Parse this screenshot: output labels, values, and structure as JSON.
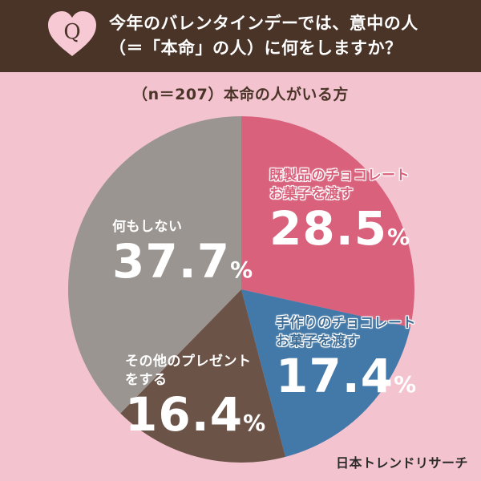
{
  "header": {
    "badge_letter": "Q",
    "question_line1": "今年のバレンタインデーでは、意中の人",
    "question_line2": "（＝「本命」の人）に何をしますか？"
  },
  "subtitle": "（n＝207）本命の人がいる方",
  "brand": "日本トレンドリサーチ",
  "colors": {
    "header_bg": "#4a3428",
    "page_bg": "#f3c4cf",
    "slice_1": "#d9617c",
    "slice_2": "#4379a8",
    "slice_3": "#6b5347",
    "slice_4": "#9b9591"
  },
  "chart_data": {
    "type": "pie",
    "title": "",
    "slices": [
      {
        "name_line1": "既製品のチョコレート",
        "name_line2": "お菓子を渡す",
        "value": 28.5,
        "value_text": "28.5",
        "unit": "%",
        "color": "#d9617c"
      },
      {
        "name_line1": "手作りのチョコレート",
        "name_line2": "お菓子を渡す",
        "value": 17.4,
        "value_text": "17.4",
        "unit": "%",
        "color": "#4379a8"
      },
      {
        "name_line1": "その他のプレゼント",
        "name_line2": "をする",
        "value": 16.4,
        "value_text": "16.4",
        "unit": "%",
        "color": "#6b5347"
      },
      {
        "name_line1": "何もしない",
        "name_line2": "",
        "value": 37.7,
        "value_text": "37.7",
        "unit": "%",
        "color": "#9b9591"
      }
    ]
  }
}
